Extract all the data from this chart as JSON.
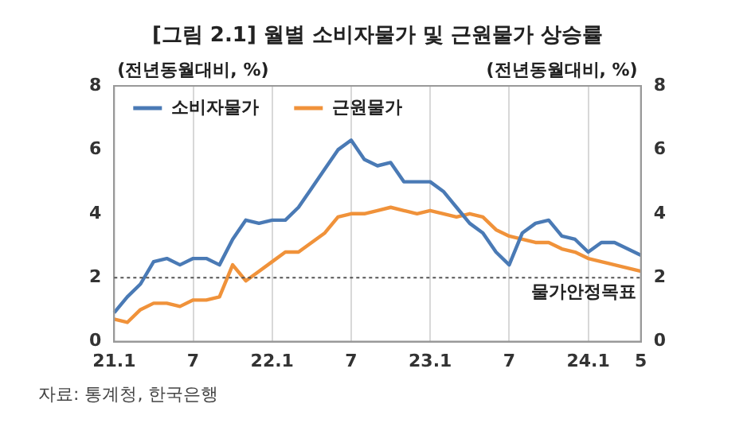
{
  "chart_data": {
    "type": "line",
    "title": "[그림 2.1] 월별 소비자물가 및 근원물가 상승률",
    "ylabel": "(전년동월대비, %)",
    "y2label": "(전년동월대비, %)",
    "categories": [
      "21.1",
      null,
      null,
      null,
      null,
      null,
      "7",
      null,
      null,
      null,
      null,
      null,
      "22.1",
      null,
      null,
      null,
      null,
      null,
      "7",
      null,
      null,
      null,
      null,
      null,
      "23.1",
      null,
      null,
      null,
      null,
      null,
      "7",
      null,
      null,
      null,
      null,
      null,
      "24.1",
      null,
      null,
      null,
      "5"
    ],
    "series": [
      {
        "name": "소비자물가",
        "color": "#4a7ab5",
        "values": [
          0.9,
          1.4,
          1.8,
          2.5,
          2.6,
          2.4,
          2.6,
          2.6,
          2.4,
          3.2,
          3.8,
          3.7,
          3.8,
          3.8,
          4.2,
          4.8,
          5.4,
          6.0,
          6.3,
          5.7,
          5.5,
          5.6,
          5.0,
          5.0,
          5.0,
          4.7,
          4.2,
          3.7,
          3.4,
          2.8,
          2.4,
          3.4,
          3.7,
          3.8,
          3.3,
          3.2,
          2.8,
          3.1,
          3.1,
          2.9,
          2.7
        ]
      },
      {
        "name": "근원물가",
        "color": "#f0923a",
        "values": [
          0.7,
          0.6,
          1.0,
          1.2,
          1.2,
          1.1,
          1.3,
          1.3,
          1.4,
          2.4,
          1.9,
          2.2,
          2.5,
          2.8,
          2.8,
          3.1,
          3.4,
          3.9,
          4.0,
          4.0,
          4.1,
          4.2,
          4.1,
          4.0,
          4.1,
          4.0,
          3.9,
          4.0,
          3.9,
          3.5,
          3.3,
          3.2,
          3.1,
          3.1,
          2.9,
          2.8,
          2.6,
          2.5,
          2.4,
          2.3,
          2.2
        ]
      }
    ],
    "ylim": [
      0,
      8
    ],
    "yticks": [
      0,
      2,
      4,
      6,
      8
    ],
    "y2lim": [
      0,
      8
    ],
    "y2ticks": [
      0,
      2,
      4,
      6,
      8
    ],
    "grid": "x",
    "legend": "top left",
    "marker": "none",
    "line_style": "solid",
    "ref_lines": [
      {
        "axis": "y",
        "value": 2,
        "label": "물가안정목표",
        "color": "#555555",
        "line_style": "dotted"
      }
    ],
    "annotations": [
      "자료: 통계청, 한국은행"
    ]
  }
}
